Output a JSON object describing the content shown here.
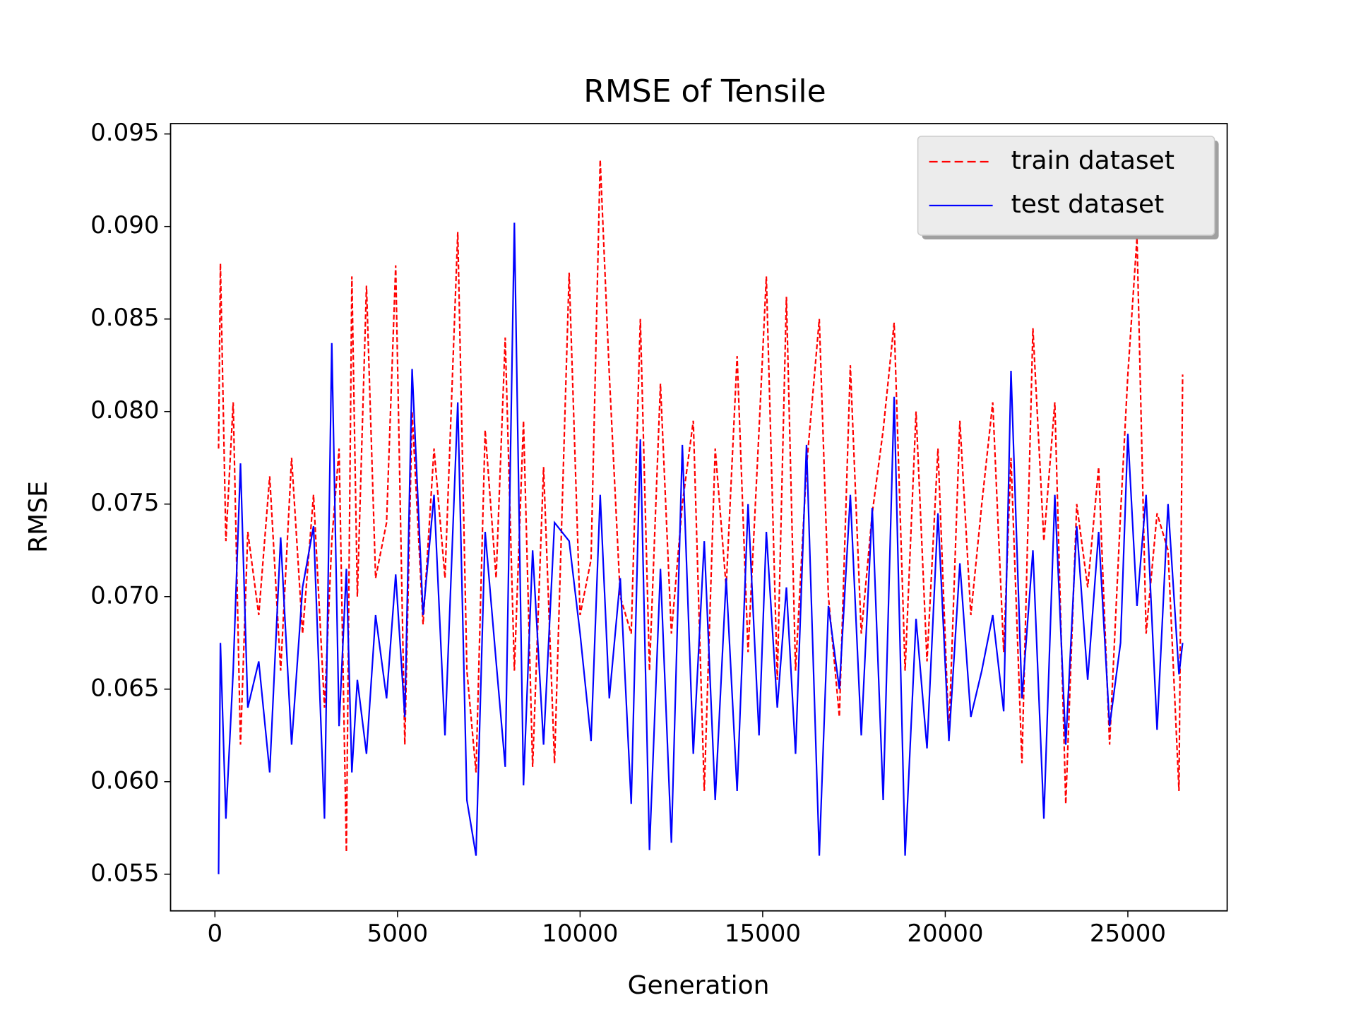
{
  "chart_data": {
    "type": "line",
    "title": "RMSE of Tensile",
    "xlabel": "Generation",
    "ylabel": "RMSE",
    "x": [
      100,
      150,
      300,
      500,
      700,
      900,
      1200,
      1500,
      1800,
      2100,
      2400,
      2700,
      3000,
      3200,
      3400,
      3600,
      3750,
      3900,
      4150,
      4400,
      4700,
      4950,
      5200,
      5400,
      5700,
      6000,
      6300,
      6650,
      6900,
      7150,
      7400,
      7700,
      7950,
      8200,
      8450,
      8700,
      9000,
      9300,
      9700,
      10000,
      10300,
      10550,
      10800,
      11100,
      11400,
      11650,
      11900,
      12200,
      12500,
      12800,
      13100,
      13400,
      13700,
      14000,
      14300,
      14600,
      14900,
      15100,
      15400,
      15650,
      15900,
      16200,
      16550,
      16800,
      17100,
      17400,
      17700,
      18000,
      18300,
      18600,
      18900,
      19200,
      19500,
      19800,
      20100,
      20400,
      20700,
      21000,
      21300,
      21600,
      21800,
      22100,
      22400,
      22700,
      23000,
      23300,
      23600,
      23900,
      24200,
      24500,
      24800,
      25000,
      25250,
      25500,
      25800,
      26100,
      26400,
      26500
    ],
    "series": [
      {
        "name": "train dataset",
        "color": "#ff0000",
        "linestyle": "dashed",
        "values": [
          0.078,
          0.088,
          0.073,
          0.0805,
          0.062,
          0.0735,
          0.069,
          0.0765,
          0.066,
          0.0775,
          0.068,
          0.0755,
          0.064,
          0.073,
          0.078,
          0.0562,
          0.0873,
          0.07,
          0.0868,
          0.071,
          0.074,
          0.0879,
          0.062,
          0.08,
          0.0685,
          0.078,
          0.071,
          0.0897,
          0.066,
          0.0605,
          0.079,
          0.071,
          0.084,
          0.066,
          0.0795,
          0.0608,
          0.077,
          0.061,
          0.0875,
          0.069,
          0.072,
          0.0936,
          0.082,
          0.07,
          0.068,
          0.085,
          0.066,
          0.0815,
          0.068,
          0.075,
          0.0795,
          0.0595,
          0.078,
          0.0705,
          0.083,
          0.067,
          0.079,
          0.0873,
          0.0655,
          0.0862,
          0.066,
          0.077,
          0.085,
          0.07,
          0.0635,
          0.0825,
          0.068,
          0.0745,
          0.079,
          0.0848,
          0.066,
          0.08,
          0.0665,
          0.078,
          0.0625,
          0.0795,
          0.069,
          0.075,
          0.0805,
          0.067,
          0.0775,
          0.061,
          0.0845,
          0.073,
          0.0805,
          0.0588,
          0.075,
          0.0705,
          0.077,
          0.062,
          0.0745,
          0.082,
          0.0894,
          0.068,
          0.0745,
          0.0725,
          0.0595,
          0.082
        ]
      },
      {
        "name": "test dataset",
        "color": "#0000ff",
        "linestyle": "solid",
        "values": [
          0.055,
          0.0675,
          0.058,
          0.066,
          0.0772,
          0.064,
          0.0665,
          0.0605,
          0.0732,
          0.062,
          0.0705,
          0.0738,
          0.058,
          0.0837,
          0.063,
          0.0715,
          0.0605,
          0.0655,
          0.0615,
          0.069,
          0.0645,
          0.0712,
          0.0635,
          0.0823,
          0.069,
          0.0755,
          0.0625,
          0.0805,
          0.059,
          0.056,
          0.0735,
          0.0665,
          0.0608,
          0.0902,
          0.0598,
          0.0725,
          0.062,
          0.074,
          0.073,
          0.068,
          0.0622,
          0.0755,
          0.0645,
          0.071,
          0.0588,
          0.0785,
          0.0563,
          0.0715,
          0.0567,
          0.0782,
          0.0615,
          0.073,
          0.059,
          0.071,
          0.0595,
          0.075,
          0.0625,
          0.0735,
          0.064,
          0.0705,
          0.0615,
          0.0782,
          0.056,
          0.0695,
          0.065,
          0.0755,
          0.0625,
          0.0748,
          0.059,
          0.0808,
          0.056,
          0.0688,
          0.0618,
          0.0745,
          0.0622,
          0.0718,
          0.0635,
          0.066,
          0.069,
          0.0638,
          0.0822,
          0.0645,
          0.0725,
          0.058,
          0.0755,
          0.062,
          0.0738,
          0.0655,
          0.0735,
          0.063,
          0.0675,
          0.0788,
          0.0695,
          0.0755,
          0.0628,
          0.075,
          0.0658,
          0.0675
        ]
      }
    ],
    "xlim": [
      -1215,
      27720
    ],
    "ylim": [
      0.05302,
      0.09556
    ],
    "xticks": [
      0,
      5000,
      10000,
      15000,
      20000,
      25000
    ],
    "yticks": [
      0.055,
      {
        "value": 0.06,
        "label": "0.060"
      },
      0.065,
      {
        "value": 0.07,
        "label": "0.070"
      },
      0.075,
      {
        "value": 0.08,
        "label": "0.080"
      },
      0.085,
      {
        "value": 0.09,
        "label": "0.090"
      },
      0.095
    ],
    "legend": "upper right",
    "grid": false
  }
}
